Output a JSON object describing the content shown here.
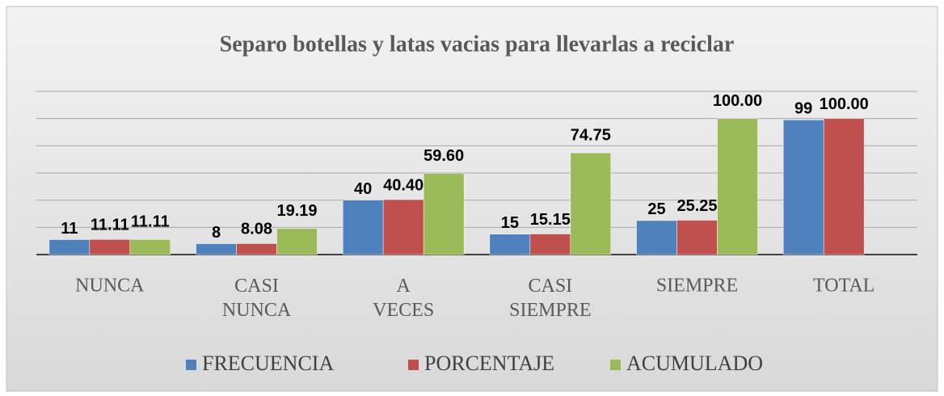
{
  "chart_data": {
    "type": "bar",
    "title": "Separo botellas y latas vacias para llevarlas  a reciclar",
    "categories": [
      "NUNCA",
      "CASI NUNCA",
      "A VECES",
      "CASI SIEMPRE",
      "SIEMPRE",
      "TOTAL"
    ],
    "series": [
      {
        "name": "FRECUENCIA",
        "color": "#4f81bd",
        "values": [
          11,
          8,
          40,
          15,
          25,
          99
        ],
        "value_labels": [
          "11",
          "8",
          "40",
          "15",
          "25",
          "99"
        ]
      },
      {
        "name": "PORCENTAJE",
        "color": "#c0504d",
        "values": [
          11.11,
          8.08,
          40.4,
          15.15,
          25.25,
          100
        ],
        "value_labels": [
          "11.11",
          "8.08",
          "40.40",
          "15.15",
          "25.25",
          "100.00"
        ]
      },
      {
        "name": "ACUMULADO",
        "color": "#9bbb59",
        "values": [
          11.11,
          19.19,
          59.6,
          74.75,
          100,
          null
        ],
        "value_labels": [
          "11.11",
          "19.19",
          "59.60",
          "74.75",
          "100.00",
          null
        ]
      }
    ],
    "ylim": [
      0,
      120
    ],
    "yticks": [
      0,
      20,
      40,
      60,
      80,
      100,
      120
    ],
    "grid": true,
    "legend": "bottom"
  }
}
